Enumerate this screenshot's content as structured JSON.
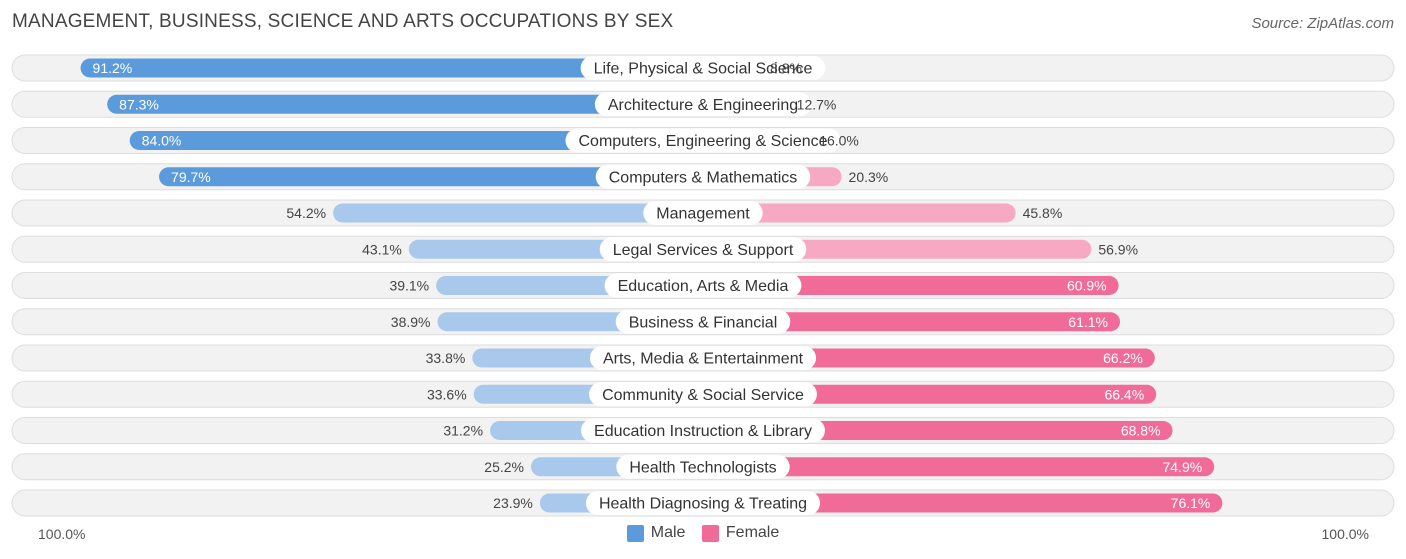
{
  "title": "MANAGEMENT, BUSINESS, SCIENCE AND ARTS OCCUPATIONS BY SEX",
  "source": "Source: ZipAtlas.com",
  "axis": {
    "left_label": "100.0%",
    "right_label": "100.0%"
  },
  "legend": {
    "male": "Male",
    "female": "Female"
  },
  "colors": {
    "male_strong": "#5b9bdc",
    "male_light": "#a9c9ec",
    "female_strong": "#f06b98",
    "female_light": "#f7a8c2"
  },
  "chart_data": {
    "type": "bar",
    "orientation": "horizontal-diverging",
    "categories": [
      "Life, Physical & Social Science",
      "Architecture & Engineering",
      "Computers, Engineering & Science",
      "Computers & Mathematics",
      "Management",
      "Legal Services & Support",
      "Education, Arts & Media",
      "Business & Financial",
      "Arts, Media & Entertainment",
      "Community & Social Service",
      "Education Instruction & Library",
      "Health Technologists",
      "Health Diagnosing & Treating"
    ],
    "series": [
      {
        "name": "Male",
        "values": [
          91.2,
          87.3,
          84.0,
          79.7,
          54.2,
          43.1,
          39.1,
          38.9,
          33.8,
          33.6,
          31.2,
          25.2,
          23.9
        ]
      },
      {
        "name": "Female",
        "values": [
          8.8,
          12.7,
          16.0,
          20.3,
          45.8,
          56.9,
          60.9,
          61.1,
          66.2,
          66.4,
          68.8,
          74.9,
          76.1
        ]
      }
    ],
    "value_labels": {
      "male": [
        "91.2%",
        "87.3%",
        "84.0%",
        "79.7%",
        "54.2%",
        "43.1%",
        "39.1%",
        "38.9%",
        "33.8%",
        "33.6%",
        "31.2%",
        "25.2%",
        "23.9%"
      ],
      "female": [
        "8.8%",
        "12.7%",
        "16.0%",
        "20.3%",
        "45.8%",
        "56.9%",
        "60.9%",
        "61.1%",
        "66.2%",
        "66.4%",
        "68.8%",
        "74.9%",
        "76.1%"
      ]
    },
    "xlim": [
      -100,
      100
    ],
    "legend_position": "bottom-center",
    "grid": false
  }
}
